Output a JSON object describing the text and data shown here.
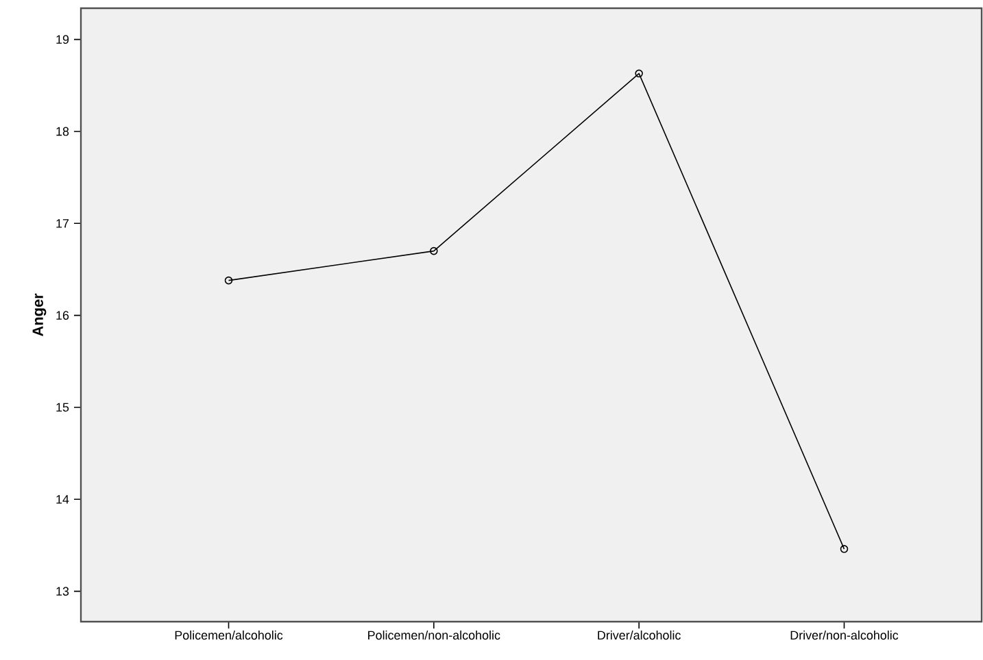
{
  "chart_data": {
    "type": "line",
    "ylabel": "Anger",
    "categories": [
      "Policemen/alcoholic",
      "Policemen/non-alcoholic",
      "Driver/alcoholic",
      "Driver/non-alcoholic"
    ],
    "series": [
      {
        "color": "#000000",
        "values": [
          16.38,
          16.7,
          18.63,
          13.46
        ]
      }
    ],
    "ylim": [
      12.67,
      19.34
    ],
    "yticks": [
      13,
      14,
      15,
      16,
      17,
      18,
      19
    ],
    "marker": "circle",
    "line_style": "solid"
  }
}
